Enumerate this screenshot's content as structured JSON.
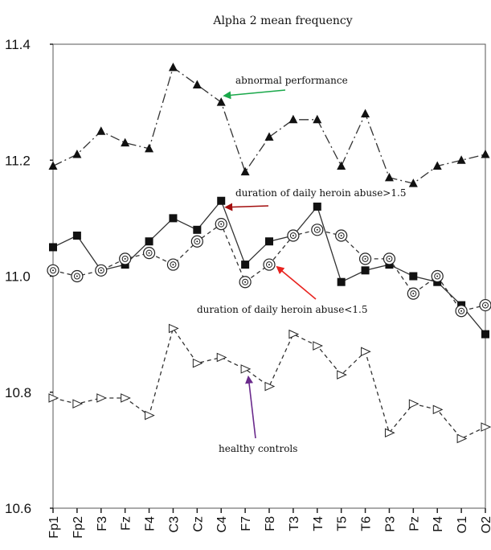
{
  "chart_data": {
    "type": "line",
    "title": "Alpha 2 mean frequency",
    "xlabel": "",
    "ylabel": "",
    "ylim": [
      10.6,
      11.4
    ],
    "yticks": [
      "10.6",
      "10.8",
      "11.0",
      "11.2",
      "11.4"
    ],
    "grid": false,
    "categories": [
      "Fp1",
      "Fp2",
      "F3",
      "Fz",
      "F4",
      "C3",
      "Cz",
      "C4",
      "F7",
      "F8",
      "T3",
      "T4",
      "T5",
      "T6",
      "P3",
      "Pz",
      "P4",
      "O1",
      "O2"
    ],
    "series": [
      {
        "name": "abnormal performance",
        "marker": "filled-triangle",
        "line": "dash-dot",
        "values": [
          11.19,
          11.21,
          11.25,
          11.23,
          11.22,
          11.36,
          11.33,
          11.3,
          11.18,
          11.24,
          11.27,
          11.27,
          11.19,
          11.28,
          11.17,
          11.16,
          11.19,
          11.2,
          11.21
        ]
      },
      {
        "name": "duration of daily heroin abuse>1.5",
        "marker": "filled-square",
        "line": "solid",
        "values": [
          11.05,
          11.07,
          11.01,
          11.02,
          11.06,
          11.1,
          11.08,
          11.13,
          11.02,
          11.06,
          11.07,
          11.12,
          10.99,
          11.01,
          11.02,
          11.0,
          10.99,
          10.95,
          10.9
        ]
      },
      {
        "name": "duration of daily heroin abuse<1.5",
        "marker": "open-circle-dot",
        "line": "dashed",
        "values": [
          11.01,
          11.0,
          11.01,
          11.03,
          11.04,
          11.02,
          11.06,
          11.09,
          10.99,
          11.02,
          11.07,
          11.08,
          11.07,
          11.03,
          11.03,
          10.97,
          11.0,
          10.94,
          10.95
        ]
      },
      {
        "name": "healthy controls",
        "marker": "open-triangle-right",
        "line": "dashed",
        "values": [
          10.79,
          10.78,
          10.79,
          10.79,
          10.76,
          10.91,
          10.85,
          10.86,
          10.84,
          10.81,
          10.9,
          10.88,
          10.83,
          10.87,
          10.73,
          10.78,
          10.77,
          10.72,
          10.74
        ]
      }
    ],
    "annotations": [
      {
        "text": "abnormal performance",
        "arrow_color": "#1aa84a",
        "series": 0
      },
      {
        "text": "duration of daily heroin abuse>1.5",
        "arrow_color": "#a30e0e",
        "series": 1
      },
      {
        "text": "duration of daily heroin abuse<1.5",
        "arrow_color": "#e8231f",
        "series": 2
      },
      {
        "text": "healthy controls",
        "arrow_color": "#6a2a8c",
        "series": 3
      }
    ]
  }
}
